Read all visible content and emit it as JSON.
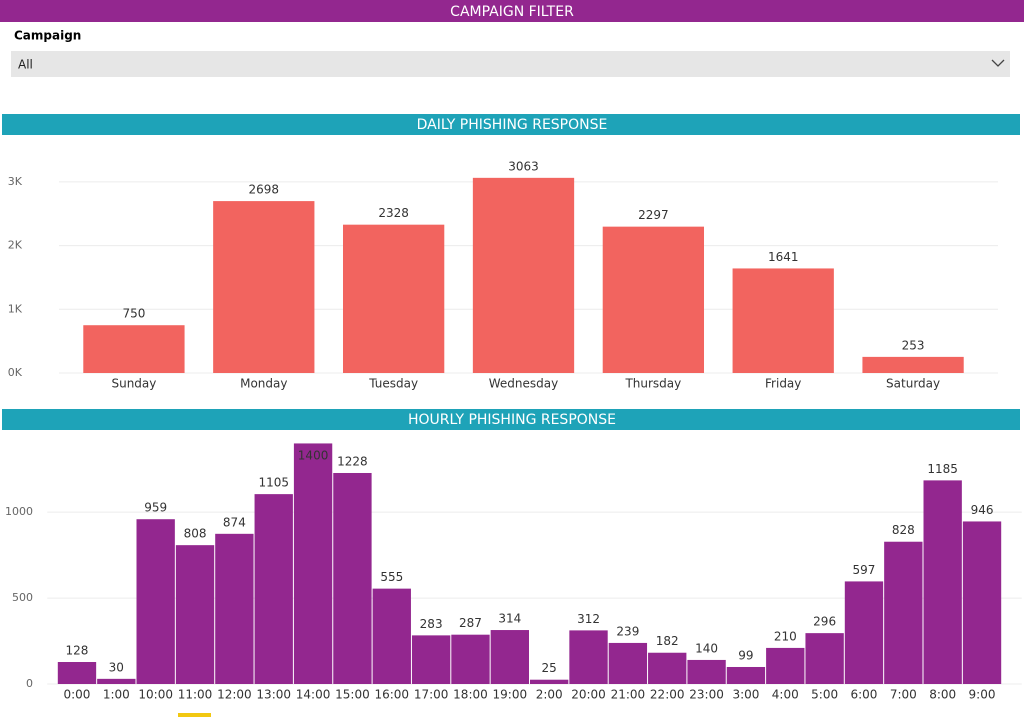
{
  "filter": {
    "header": "CAMPAIGN FILTER",
    "label": "Campaign",
    "selected": "All"
  },
  "chart_data": [
    {
      "type": "bar",
      "title": "DAILY PHISHING RESPONSE",
      "color": "#f2645f",
      "grid": true,
      "categories": [
        "Sunday",
        "Monday",
        "Tuesday",
        "Wednesday",
        "Thursday",
        "Friday",
        "Saturday"
      ],
      "values": [
        750,
        2698,
        2328,
        3063,
        2297,
        1641,
        253
      ],
      "ylim": [
        0,
        3500
      ],
      "yticks": [
        {
          "value": 0,
          "label": "0K"
        },
        {
          "value": 1000,
          "label": "1K"
        },
        {
          "value": 2000,
          "label": "2K"
        },
        {
          "value": 3000,
          "label": "3K"
        }
      ]
    },
    {
      "type": "bar",
      "title": "HOURLY PHISHING RESPONSE",
      "color": "#93278f",
      "grid": true,
      "categories": [
        "0:00",
        "1:00",
        "10:00",
        "11:00",
        "12:00",
        "13:00",
        "14:00",
        "15:00",
        "16:00",
        "17:00",
        "18:00",
        "19:00",
        "2:00",
        "20:00",
        "21:00",
        "22:00",
        "23:00",
        "3:00",
        "4:00",
        "5:00",
        "6:00",
        "7:00",
        "8:00",
        "9:00"
      ],
      "values": [
        128,
        30,
        959,
        808,
        874,
        1105,
        1400,
        1228,
        555,
        283,
        287,
        314,
        25,
        312,
        239,
        182,
        140,
        99,
        210,
        296,
        597,
        828,
        1185,
        946
      ],
      "ylim": [
        0,
        1420
      ],
      "yticks": [
        0,
        500,
        1000
      ]
    }
  ]
}
